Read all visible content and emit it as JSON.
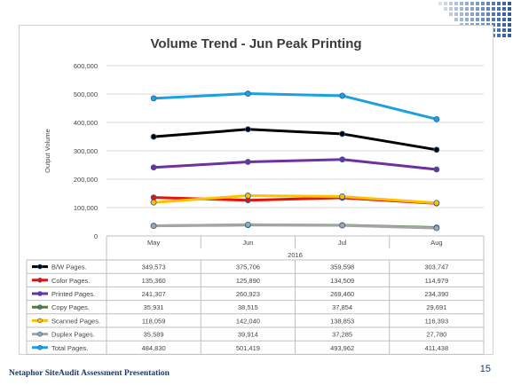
{
  "footer": {
    "presentation": "Netaphor SiteAudit Assessment Presentation",
    "page_number": "15"
  },
  "chart_data": {
    "type": "line",
    "title": "Volume Trend - Jun Peak Printing",
    "ylabel": "Output Volume",
    "xlabel": "2016",
    "categories": [
      "May",
      "Jun",
      "Jul",
      "Aug"
    ],
    "ylim": [
      0,
      600000
    ],
    "yticks": [
      "0",
      "100,000",
      "200,000",
      "300,000",
      "400,000",
      "500,000",
      "600,000"
    ],
    "grid": true,
    "legend": "data-table-below",
    "series": [
      {
        "name": "B/W Pages.",
        "color": "#000000",
        "values": [
          349573,
          375706,
          359598,
          303747
        ],
        "labels": [
          "349,573",
          "375,706",
          "359,598",
          "303,747"
        ]
      },
      {
        "name": "Color Pages.",
        "color": "#e3120b",
        "values": [
          135360,
          125890,
          134509,
          114979
        ],
        "labels": [
          "135,360",
          "125,890",
          "134,509",
          "114,979"
        ]
      },
      {
        "name": "Printed Pages.",
        "color": "#7030a0",
        "values": [
          241307,
          260923,
          269460,
          234390
        ],
        "labels": [
          "241,307",
          "260,923",
          "269,460",
          "234,390"
        ]
      },
      {
        "name": "Copy Pages.",
        "color": "#548235",
        "values": [
          35931,
          38515,
          37854,
          29691
        ],
        "labels": [
          "35,931",
          "38,515",
          "37,854",
          "29,691"
        ]
      },
      {
        "name": "Scanned Pages.",
        "color": "#ffc000",
        "values": [
          118059,
          142040,
          138853,
          116393
        ],
        "labels": [
          "118,059",
          "142,040",
          "138,853",
          "116,393"
        ]
      },
      {
        "name": "Duplex Pages.",
        "color": "#a5a5a5",
        "values": [
          35589,
          39914,
          37285,
          27780
        ],
        "labels": [
          "35,589",
          "39,914",
          "37,285",
          "27,780"
        ]
      },
      {
        "name": "Total Pages.",
        "color": "#1ba1e2",
        "values": [
          484830,
          501419,
          493962,
          411438
        ],
        "labels": [
          "484,830",
          "501,419",
          "493,962",
          "411,438"
        ]
      }
    ]
  }
}
